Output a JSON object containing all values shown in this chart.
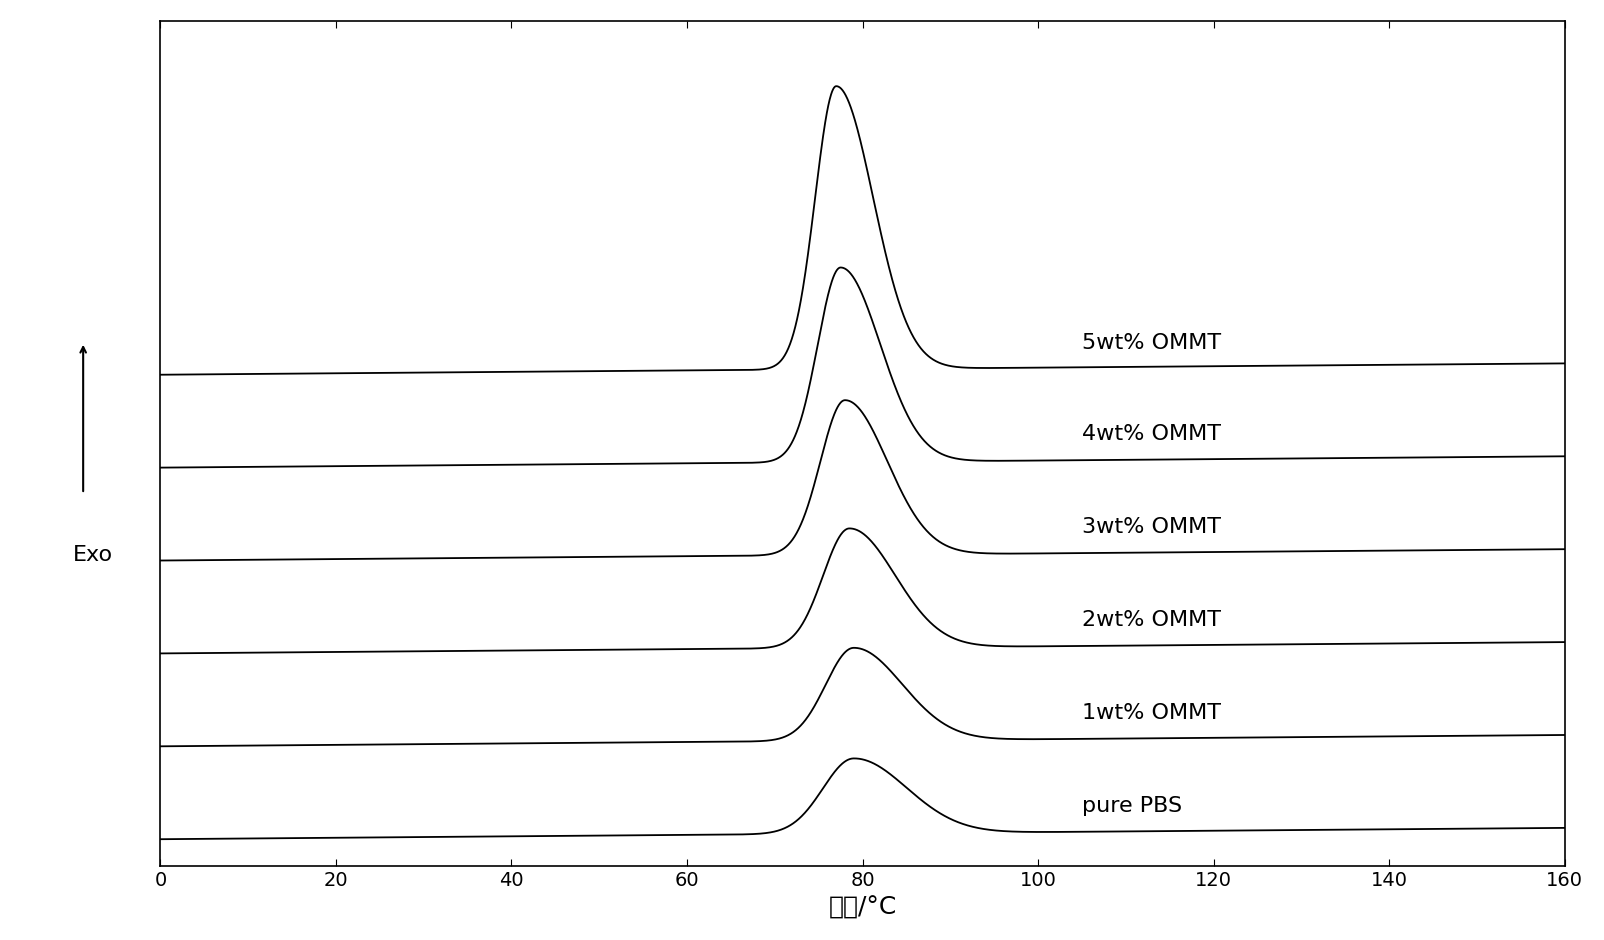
{
  "xlim": [
    0,
    160
  ],
  "xlabel": "温度/°C",
  "ylabel": "Exo",
  "x_ticks": [
    0,
    20,
    40,
    60,
    80,
    100,
    120,
    140,
    160
  ],
  "series_labels": [
    "pure PBS",
    "1wt% OMMT",
    "2wt% OMMT",
    "3wt% OMMT",
    "4wt% OMMT",
    "5wt% OMMT"
  ],
  "peak_positions": [
    79,
    79,
    78.5,
    78,
    77.5,
    77
  ],
  "peak_heights": [
    0.85,
    1.05,
    1.35,
    1.75,
    2.2,
    3.2
  ],
  "peak_width_left": [
    3.5,
    3.2,
    3.0,
    2.8,
    2.6,
    2.4
  ],
  "peak_width_right": [
    6.0,
    5.5,
    5.2,
    4.8,
    4.5,
    4.2
  ],
  "baseline_slope": 0.0008,
  "baseline_offsets": [
    0.0,
    1.05,
    2.1,
    3.15,
    4.2,
    5.25
  ],
  "line_color": "#000000",
  "background_color": "#ffffff",
  "xlabel_fontsize": 18,
  "ylabel_fontsize": 16,
  "tick_fontsize": 14,
  "label_fontsize": 16
}
